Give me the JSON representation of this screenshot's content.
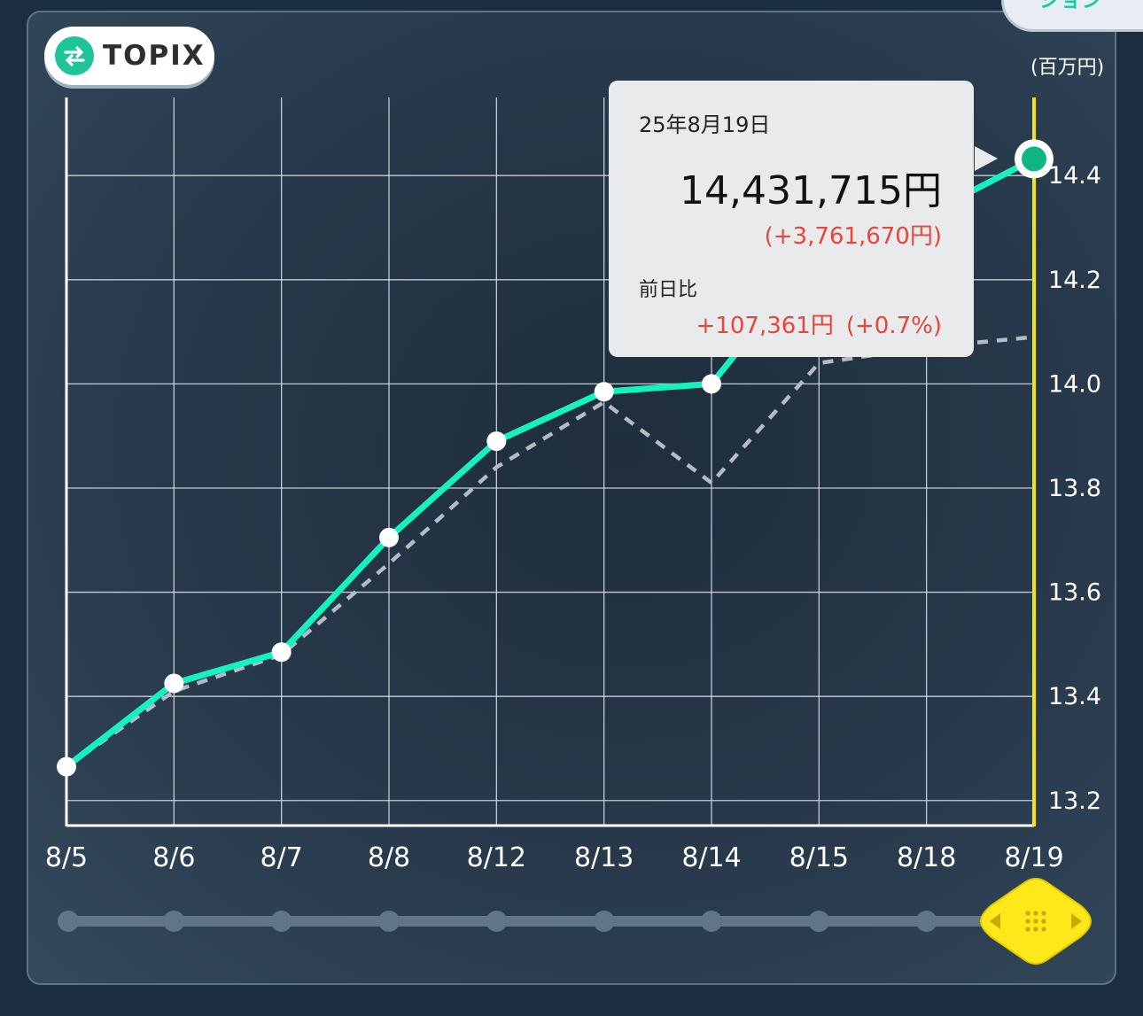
{
  "badge": {
    "label": "TOPIX",
    "icon": "exchange-arrows-icon",
    "icon_color": "#1fc598"
  },
  "corner_tab": {
    "label": "ション"
  },
  "unit": "(百万円)",
  "tooltip": {
    "date": "25年8月19日",
    "value": "14,431,715円",
    "gain": "(+3,761,670円)",
    "prev_label": "前日比",
    "prev_change": "+107,361円",
    "prev_pct": "(+0.7%)"
  },
  "colors": {
    "series_line": "#14f2c0",
    "comparison_line": "#b3bcc4",
    "cursor": "#f5e31a",
    "gain": "#e8453c"
  },
  "chart_data": {
    "type": "line",
    "categories": [
      "8/5",
      "8/6",
      "8/7",
      "8/8",
      "8/12",
      "8/13",
      "8/14",
      "8/15",
      "8/18",
      "8/19"
    ],
    "series": [
      {
        "values": [
          13.265,
          13.425,
          13.485,
          13.705,
          13.89,
          13.985,
          14.0,
          14.255,
          14.325,
          14.432
        ]
      },
      {
        "values": [
          13.265,
          13.41,
          13.48,
          13.655,
          13.84,
          13.965,
          13.81,
          14.04,
          14.07,
          14.09
        ]
      }
    ],
    "yticks": [
      13.2,
      13.4,
      13.6,
      13.8,
      14.0,
      14.2,
      14.4
    ],
    "ylim": [
      13.152,
      14.55
    ],
    "selected_index": 9,
    "grid": true
  }
}
